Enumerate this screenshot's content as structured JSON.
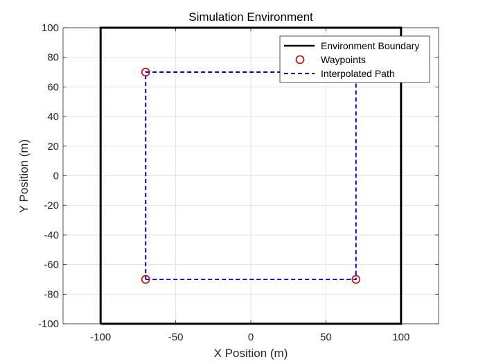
{
  "chart_data": {
    "type": "line",
    "title": "Simulation Environment",
    "xlabel": "X Position (m)",
    "ylabel": "Y Position (m)",
    "xlim": [
      -125,
      125
    ],
    "ylim": [
      -100,
      100
    ],
    "xticks": [
      -100,
      -50,
      0,
      50,
      100
    ],
    "yticks": [
      -100,
      -80,
      -60,
      -40,
      -20,
      0,
      20,
      40,
      60,
      80,
      100
    ],
    "xtick_labels": [
      "-100",
      "-50",
      "0",
      "50",
      "100"
    ],
    "ytick_labels": [
      "-100",
      "-80",
      "-60",
      "-40",
      "-20",
      "0",
      "20",
      "40",
      "60",
      "80",
      "100"
    ],
    "grid": true,
    "legend_position": "top-right",
    "series": [
      {
        "name": "Environment Boundary",
        "style": "solid-line",
        "color": "#000000",
        "x": [
          -100,
          100,
          100,
          -100,
          -100
        ],
        "y": [
          -100,
          -100,
          100,
          100,
          -100
        ]
      },
      {
        "name": "Waypoints",
        "style": "circle-markers",
        "color": "#cc0000",
        "x": [
          -70,
          70,
          70,
          -70
        ],
        "y": [
          -70,
          -70,
          70,
          70
        ]
      },
      {
        "name": "Interpolated Path",
        "style": "dashed-line",
        "color": "#0000cc",
        "x": [
          -70,
          70,
          70,
          -70,
          -70
        ],
        "y": [
          -70,
          -70,
          70,
          70,
          -70
        ]
      }
    ]
  }
}
